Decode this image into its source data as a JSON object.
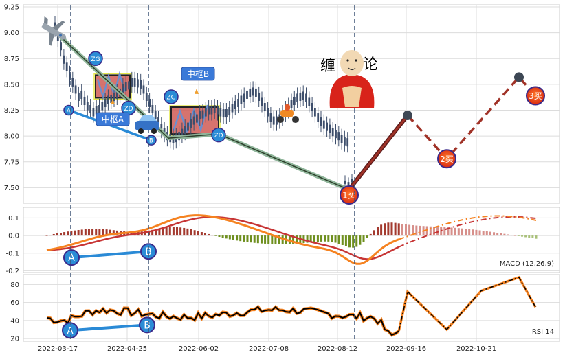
{
  "chart_data": [
    {
      "type": "line",
      "panel": "price",
      "subtype": "candlestick",
      "ylim": [
        7.35,
        9.27
      ],
      "yticks": [
        "9.25",
        "9.00",
        "8.75",
        "8.50",
        "8.25",
        "8.00",
        "7.75",
        "7.50"
      ],
      "ytick_values": [
        9.25,
        9.0,
        8.75,
        8.5,
        8.25,
        8.0,
        7.75,
        7.5
      ],
      "candles": {
        "color": "#3d4e6b",
        "highs": [
          9.16,
          9.06,
          8.97,
          8.84,
          8.77,
          8.68,
          8.62,
          8.55,
          8.48,
          8.5,
          8.44,
          8.39,
          8.36,
          8.33,
          8.35,
          8.36,
          8.39,
          8.42,
          8.45,
          8.46,
          8.48,
          8.5,
          8.52,
          8.56,
          8.58,
          8.59,
          8.62,
          8.62,
          8.61,
          8.6,
          8.55,
          8.48,
          8.42,
          8.36,
          8.3,
          8.24,
          8.18,
          8.14,
          8.1,
          8.08,
          8.07,
          8.08,
          8.1,
          8.13,
          8.16,
          8.19,
          8.22,
          8.25,
          8.27,
          8.3,
          8.31,
          8.33,
          8.35,
          8.35,
          8.36,
          8.35,
          8.33,
          8.32,
          8.32,
          8.34,
          8.37,
          8.4,
          8.42,
          8.45,
          8.47,
          8.5,
          8.52,
          8.53,
          8.52,
          8.48,
          8.43,
          8.38,
          8.33,
          8.28,
          8.25,
          8.25,
          8.27,
          8.3,
          8.34,
          8.37,
          8.41,
          8.44,
          8.47,
          8.48,
          8.49,
          8.47,
          8.43,
          8.38,
          8.33,
          8.28,
          8.24,
          8.21,
          8.19,
          8.17,
          8.14,
          8.12,
          8.1,
          8.07,
          8.05,
          8.04
        ],
        "lows": [
          8.96,
          8.86,
          8.77,
          8.64,
          8.57,
          8.48,
          8.42,
          8.35,
          8.28,
          8.3,
          8.24,
          8.19,
          8.16,
          8.13,
          8.15,
          8.16,
          8.19,
          8.22,
          8.25,
          8.26,
          8.28,
          8.3,
          8.32,
          8.36,
          8.38,
          8.39,
          8.42,
          8.42,
          8.41,
          8.4,
          8.35,
          8.28,
          8.22,
          8.16,
          8.1,
          8.04,
          7.98,
          7.94,
          7.9,
          7.88,
          7.87,
          7.88,
          7.9,
          7.93,
          7.96,
          7.99,
          8.02,
          8.05,
          8.07,
          8.1,
          8.11,
          8.13,
          8.15,
          8.15,
          8.16,
          8.15,
          8.13,
          8.12,
          8.12,
          8.14,
          8.17,
          8.2,
          8.22,
          8.25,
          8.27,
          8.3,
          8.32,
          8.33,
          8.32,
          8.28,
          8.23,
          8.18,
          8.13,
          8.08,
          8.05,
          8.05,
          8.07,
          8.1,
          8.14,
          8.17,
          8.21,
          8.24,
          8.27,
          8.28,
          8.29,
          8.27,
          8.23,
          8.18,
          8.13,
          8.08,
          8.04,
          8.01,
          7.99,
          7.97,
          7.94,
          7.92,
          7.9,
          7.87,
          7.85,
          7.84
        ],
        "later_highs": [
          7.62,
          7.6,
          7.63
        ],
        "later_lows": [
          7.46,
          7.45,
          7.48
        ]
      },
      "x_labels": [
        "2022-03-17",
        "2022-04-25",
        "2022-06-02",
        "2022-07-08",
        "2022-08-12",
        "2022-09-16",
        "2022-10-21"
      ],
      "markers": [
        {
          "label": "A",
          "price": 8.25
        },
        {
          "label": "B",
          "price": 7.96
        },
        {
          "label": "ZG",
          "price": 8.75
        },
        {
          "label": "ZD",
          "price": 8.27
        },
        {
          "label": "ZG",
          "price": 8.38
        },
        {
          "label": "ZD",
          "price": 8.01
        }
      ],
      "zs_labels": [
        "中枢A",
        "中枢B"
      ],
      "zs_boxes": [
        {
          "label": "中枢A",
          "top": 8.59,
          "bottom": 8.37
        },
        {
          "label": "中枢B",
          "top": 8.28,
          "bottom": 8.02
        }
      ],
      "bi_line": {
        "values": [
          9.0,
          7.98,
          8.02,
          7.48
        ]
      },
      "forecast": {
        "values": [
          7.5,
          8.2,
          7.78,
          8.57,
          8.39
        ]
      },
      "buy_points": [
        "1买",
        "2买",
        "3买"
      ],
      "title_chars": [
        "缠",
        "论"
      ],
      "colors": {
        "bi": "#8fb59a",
        "bi_dark": "#2c3e2a",
        "seg": "#2a8ad6",
        "forecast": "#a03227",
        "buy": "#e63a1a",
        "marker": "#2b8cd6",
        "box": "#cf5a55",
        "zs_label": "#3a79d8"
      }
    },
    {
      "type": "line",
      "panel": "macd",
      "label": "MACD (12,26,9)",
      "ylim": [
        -0.21,
        0.16
      ],
      "yticks": [
        "0.1",
        "0.0",
        "-0.1",
        "-0.2"
      ],
      "ytick_values": [
        0.1,
        0.0,
        -0.1,
        -0.2
      ],
      "markers": [
        {
          "label": "A",
          "value": -0.125
        },
        {
          "label": "B",
          "value": -0.09
        }
      ],
      "colors": {
        "dif": "#f58220",
        "dea": "#c73535",
        "hist_pos": "#a33a2f",
        "hist_neg": "#6e8f1e",
        "hist_pos_future": "#d68f8a",
        "hist_neg_future": "#a8c078"
      }
    },
    {
      "type": "line",
      "panel": "rsi",
      "label": "RSI 14",
      "ylim": [
        17,
        91
      ],
      "yticks": [
        "80",
        "60",
        "40",
        "20"
      ],
      "ytick_values": [
        80,
        60,
        40,
        20
      ],
      "markers": [
        {
          "label": "A",
          "value": 29
        },
        {
          "label": "B",
          "value": 35
        }
      ],
      "colors": {
        "rsi": "#000000",
        "rsi_glow": "#f58220"
      }
    }
  ]
}
